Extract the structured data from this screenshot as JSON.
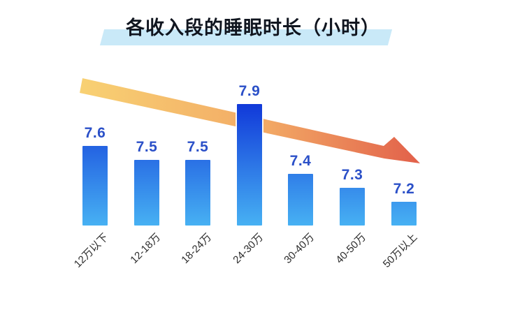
{
  "title": "各收入段的睡眠时长（小时）",
  "chart_data": {
    "type": "bar",
    "title": "各收入段的睡眠时长（小时）",
    "categories": [
      "12万以下",
      "12-18万",
      "18-24万",
      "24-30万",
      "30-40万",
      "40-50万",
      "50万以上"
    ],
    "values": [
      7.6,
      7.5,
      7.5,
      7.9,
      7.4,
      7.3,
      7.2
    ],
    "unit": "小时",
    "xlabel": "收入段",
    "ylabel": "睡眠时长",
    "value_labels_shown": true,
    "grid": false,
    "legend": false,
    "annotation": "declining trend arrow over bars",
    "colors": {
      "bar_gradient_top": "#1139d9",
      "bar_gradient_bottom": "#47b1f3",
      "value_label": "#2b50c8",
      "axis_label": "#2d2d2d",
      "title_text": "#10151f",
      "title_highlight": "#c9e9f8",
      "arrow_start": "#f8d173",
      "arrow_mid": "#f2a965",
      "arrow_end": "#e2604a"
    }
  }
}
